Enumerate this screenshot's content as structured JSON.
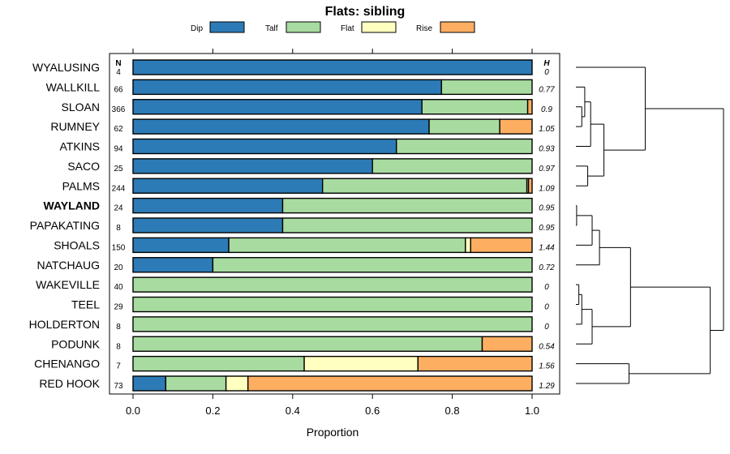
{
  "chart_data": {
    "type": "bar",
    "stacked": true,
    "orientation": "horizontal",
    "title": "Flats: sibling",
    "xlabel": "Proportion",
    "xlim": [
      0,
      1
    ],
    "xticks": [
      "0.0",
      "0.2",
      "0.4",
      "0.6",
      "0.8",
      "1.0"
    ],
    "n_header": "N",
    "h_header": "H",
    "legend": [
      {
        "name": "Dip",
        "color": "#2c7bb6"
      },
      {
        "name": "Talf",
        "color": "#a8dba0"
      },
      {
        "name": "Flat",
        "color": "#ffffbf"
      },
      {
        "name": "Rise",
        "color": "#fdae61"
      }
    ],
    "rows": [
      {
        "label": "WYALUSING",
        "n": "4",
        "h": "0",
        "values": [
          1.0,
          0,
          0,
          0
        ],
        "bold": false
      },
      {
        "label": "WALLKILL",
        "n": "66",
        "h": "0.77",
        "values": [
          0.773,
          0.227,
          0,
          0
        ],
        "bold": false
      },
      {
        "label": "SLOAN",
        "n": "366",
        "h": "0.9",
        "values": [
          0.724,
          0.265,
          0,
          0.011
        ],
        "bold": false
      },
      {
        "label": "RUMNEY",
        "n": "62",
        "h": "1.05",
        "values": [
          0.742,
          0.177,
          0,
          0.081
        ],
        "bold": false
      },
      {
        "label": "ATKINS",
        "n": "94",
        "h": "0.93",
        "values": [
          0.66,
          0.34,
          0,
          0
        ],
        "bold": false
      },
      {
        "label": "SACO",
        "n": "25",
        "h": "0.97",
        "values": [
          0.6,
          0.4,
          0,
          0
        ],
        "bold": false
      },
      {
        "label": "PALMS",
        "n": "244",
        "h": "1.09",
        "values": [
          0.475,
          0.512,
          0.004,
          0.009
        ],
        "bold": false
      },
      {
        "label": "WAYLAND",
        "n": "24",
        "h": "0.95",
        "values": [
          0.375,
          0.625,
          0,
          0
        ],
        "bold": true
      },
      {
        "label": "PAPAKATING",
        "n": "8",
        "h": "0.95",
        "values": [
          0.375,
          0.625,
          0,
          0
        ],
        "bold": false
      },
      {
        "label": "SHOALS",
        "n": "150",
        "h": "1.44",
        "values": [
          0.24,
          0.593,
          0.013,
          0.154
        ],
        "bold": false
      },
      {
        "label": "NATCHAUG",
        "n": "20",
        "h": "0.72",
        "values": [
          0.2,
          0.8,
          0,
          0
        ],
        "bold": false
      },
      {
        "label": "WAKEVILLE",
        "n": "40",
        "h": "0",
        "values": [
          0,
          1.0,
          0,
          0
        ],
        "bold": false
      },
      {
        "label": "TEEL",
        "n": "29",
        "h": "0",
        "values": [
          0,
          1.0,
          0,
          0
        ],
        "bold": false
      },
      {
        "label": "HOLDERTON",
        "n": "8",
        "h": "0",
        "values": [
          0,
          1.0,
          0,
          0
        ],
        "bold": false
      },
      {
        "label": "PODUNK",
        "n": "8",
        "h": "0.54",
        "values": [
          0,
          0.875,
          0,
          0.125
        ],
        "bold": false
      },
      {
        "label": "CHENANGO",
        "n": "7",
        "h": "1.56",
        "values": [
          0,
          0.429,
          0.285,
          0.286
        ],
        "bold": false
      },
      {
        "label": "RED HOOK",
        "n": "73",
        "h": "1.29",
        "values": [
          0.082,
          0.151,
          0.055,
          0.712
        ],
        "bold": false
      }
    ],
    "dendrogram": {
      "leaf_order": [
        "WYALUSING",
        "WALLKILL",
        "SLOAN",
        "RUMNEY",
        "ATKINS",
        "SACO",
        "PALMS",
        "WAYLAND",
        "PAPAKATING",
        "SHOALS",
        "NATCHAUG",
        "WAKEVILLE",
        "TEEL",
        "HOLDERTON",
        "PODUNK",
        "CHENANGO",
        "RED HOOK"
      ],
      "merges": [
        {
          "a": 2,
          "b": 3,
          "h": 0.04
        },
        {
          "a": 1,
          "b": -1,
          "h": 0.06
        },
        {
          "a": -2,
          "b": 4,
          "h": 0.1
        },
        {
          "a": 5,
          "b": 6,
          "h": 0.08
        },
        {
          "a": -3,
          "b": -4,
          "h": 0.19
        },
        {
          "a": 0,
          "b": -5,
          "h": 0.47
        },
        {
          "a": 7,
          "b": 8,
          "h": 0.005
        },
        {
          "a": -7,
          "b": 9,
          "h": 0.11
        },
        {
          "a": -8,
          "b": 10,
          "h": 0.16
        },
        {
          "a": 11,
          "b": 12,
          "h": 0.02
        },
        {
          "a": -10,
          "b": 13,
          "h": 0.04
        },
        {
          "a": -11,
          "b": 14,
          "h": 0.11
        },
        {
          "a": -9,
          "b": -12,
          "h": 0.37
        },
        {
          "a": 15,
          "b": 16,
          "h": 0.36
        },
        {
          "a": -13,
          "b": -14,
          "h": 0.91
        },
        {
          "a": -6,
          "b": -15,
          "h": 1.0
        }
      ]
    }
  }
}
